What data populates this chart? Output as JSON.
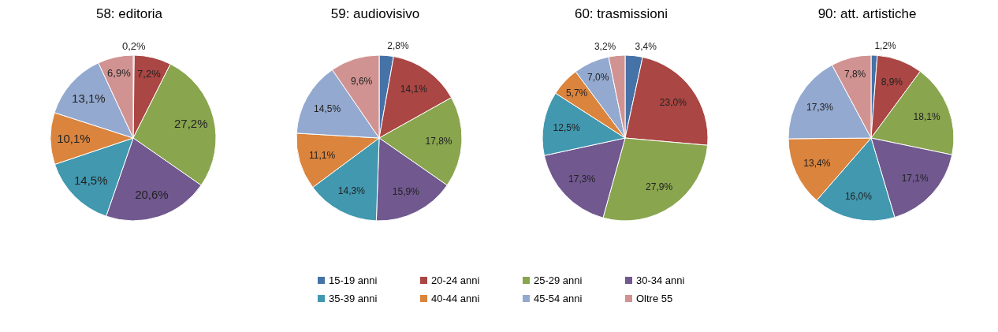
{
  "chart_data": [
    {
      "type": "pie",
      "title": "58: editoria",
      "categories": [
        "15-19 anni",
        "20-24 anni",
        "25-29 anni",
        "30-34 anni",
        "35-39 anni",
        "40-44 anni",
        "45-54 anni",
        "Oltre 55"
      ],
      "values": [
        0.2,
        7.2,
        27.2,
        20.6,
        14.5,
        10.1,
        13.1,
        6.9
      ],
      "value_labels": [
        "0,2%",
        "7,2%",
        "27,2%",
        "20,6%",
        "14,5%",
        "10,1%",
        "13,1%",
        "6,9%"
      ],
      "colors": [
        "#4572a7",
        "#aa4643",
        "#89a54e",
        "#71588f",
        "#4198af",
        "#db843d",
        "#93a9cf",
        "#d19392"
      ],
      "legend": "bottom"
    },
    {
      "type": "pie",
      "title": "59: audiovisivo",
      "values": [
        2.8,
        14.1,
        17.8,
        15.9,
        14.3,
        11.1,
        14.5,
        9.6
      ],
      "value_labels": [
        "2,8%",
        "14,1%",
        "17,8%",
        "15,9%",
        "14,3%",
        "11,1%",
        "14,5%",
        "9,6%"
      ],
      "colors": [
        "#4572a7",
        "#aa4643",
        "#89a54e",
        "#71588f",
        "#4198af",
        "#db843d",
        "#93a9cf",
        "#d19392"
      ]
    },
    {
      "type": "pie",
      "title": "60: trasmissioni",
      "values": [
        3.4,
        23.0,
        27.9,
        17.3,
        12.5,
        5.7,
        7.0,
        3.2
      ],
      "value_labels": [
        "3,4%",
        "23,0%",
        "27,9%",
        "17,3%",
        "12,5%",
        "5,7%",
        "7,0%",
        "3,2%"
      ],
      "colors": [
        "#4572a7",
        "#aa4643",
        "#89a54e",
        "#71588f",
        "#4198af",
        "#db843d",
        "#93a9cf",
        "#d19392"
      ]
    },
    {
      "type": "pie",
      "title": "90: att. artistiche",
      "values": [
        1.2,
        8.9,
        18.1,
        17.1,
        16.0,
        13.4,
        17.3,
        7.8
      ],
      "value_labels": [
        "1,2%",
        "8,9%",
        "18,1%",
        "17,1%",
        "16,0%",
        "13,4%",
        "17,3%",
        "7,8%"
      ],
      "colors": [
        "#4572a7",
        "#aa4643",
        "#89a54e",
        "#71588f",
        "#4198af",
        "#db843d",
        "#93a9cf",
        "#d19392"
      ]
    }
  ]
}
